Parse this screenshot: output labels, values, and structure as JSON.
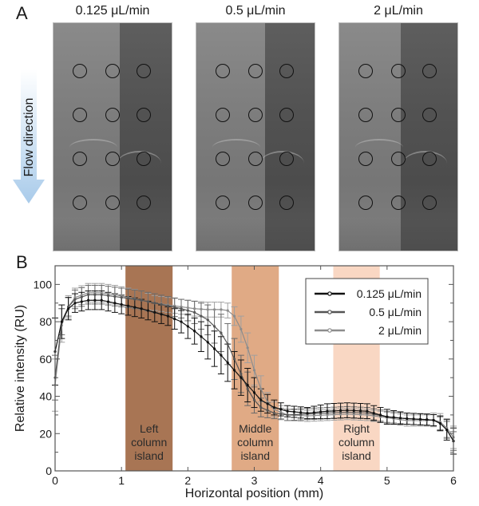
{
  "figure": {
    "panel_a_label": "A",
    "panel_b_label": "B",
    "flow_label": "Flow direction",
    "images": [
      {
        "title": "0.125 μL/min"
      },
      {
        "title": "0.5 μL/min"
      },
      {
        "title": "2 μL/min"
      }
    ],
    "roi_grid": {
      "rows": 4,
      "cols": 3
    }
  },
  "chart_data": {
    "type": "line",
    "title": "",
    "xlabel": "Horizontal position (mm)",
    "ylabel": "Relative intensity (RU)",
    "xlim": [
      0,
      6
    ],
    "ylim": [
      0,
      110
    ],
    "xticks": [
      0,
      1,
      2,
      3,
      4,
      5,
      6
    ],
    "yticks": [
      0,
      20,
      40,
      60,
      80,
      100
    ],
    "grid": false,
    "legend_position": "top-right",
    "error_bars": true,
    "bands": [
      {
        "label": [
          "Left",
          "column",
          "island"
        ],
        "x": [
          1.06,
          1.77
        ],
        "color": "#a87554"
      },
      {
        "label": [
          "Middle",
          "column",
          "island"
        ],
        "x": [
          2.66,
          3.37
        ],
        "color": "#e0aa85"
      },
      {
        "label": [
          "Right",
          "column",
          "island"
        ],
        "x": [
          4.19,
          4.89
        ],
        "color": "#f9d7c3"
      }
    ],
    "series": [
      {
        "name": "0.125 μL/min",
        "color": "#111111",
        "x": [
          0,
          0.1,
          0.2,
          0.3,
          0.5,
          0.7,
          0.9,
          1.1,
          1.3,
          1.5,
          1.7,
          1.9,
          2.1,
          2.3,
          2.5,
          2.7,
          2.9,
          3.0,
          3.1,
          3.3,
          3.5,
          3.8,
          4.1,
          4.4,
          4.7,
          5.0,
          5.3,
          5.6,
          5.75,
          5.85,
          5.95,
          6.0
        ],
        "y": [
          64,
          80,
          87,
          90,
          91.5,
          91.5,
          90,
          88.5,
          87,
          85,
          83,
          80,
          75,
          69,
          62,
          54,
          46,
          42,
          38,
          34,
          32,
          31,
          32,
          32.5,
          32,
          29,
          28,
          27.5,
          27,
          24,
          20,
          16
        ],
        "err": [
          18,
          9,
          6,
          5,
          5,
          5,
          5,
          5,
          5,
          5,
          5,
          6,
          7,
          9,
          10,
          10,
          9,
          8,
          6,
          4,
          3,
          3,
          4,
          4,
          4,
          4,
          3,
          3,
          3,
          5,
          6,
          7
        ]
      },
      {
        "name": "0.5 μL/min",
        "color": "#555555",
        "x": [
          0,
          0.1,
          0.2,
          0.3,
          0.5,
          0.7,
          0.9,
          1.1,
          1.3,
          1.5,
          1.7,
          1.9,
          2.1,
          2.3,
          2.5,
          2.6,
          2.7,
          2.8,
          2.9,
          3.0,
          3.1,
          3.3,
          3.5,
          3.8,
          4.1,
          4.4,
          4.7,
          5.0,
          5.3,
          5.6,
          5.75,
          5.85,
          5.95,
          6.0
        ],
        "y": [
          50,
          80,
          88,
          92,
          94.5,
          94.5,
          93.5,
          92.5,
          91.5,
          90,
          88.5,
          87,
          85,
          81,
          74,
          68,
          60,
          52,
          44,
          38,
          34,
          31,
          30,
          30.5,
          31,
          31.5,
          31,
          29,
          28,
          27.5,
          27,
          24,
          20,
          16
        ],
        "err": [
          12,
          7,
          5,
          5,
          5,
          5,
          5,
          5,
          5,
          5,
          5,
          5,
          6,
          8,
          10,
          11,
          11,
          10,
          9,
          7,
          5,
          3,
          3,
          3,
          3,
          3,
          3,
          3,
          3,
          3,
          3,
          4,
          5,
          5
        ]
      },
      {
        "name": "2 μL/min",
        "color": "#8c8c8c",
        "x": [
          0,
          0.1,
          0.2,
          0.3,
          0.5,
          0.7,
          0.9,
          1.1,
          1.3,
          1.5,
          1.7,
          1.9,
          2.1,
          2.3,
          2.5,
          2.6,
          2.7,
          2.8,
          2.9,
          3.0,
          3.1,
          3.2,
          3.3,
          3.5,
          3.8,
          4.1,
          4.4,
          4.7,
          5.0,
          5.3,
          5.6,
          5.75,
          5.85,
          5.95,
          6.0
        ],
        "y": [
          46,
          78,
          88,
          93,
          95.5,
          95.5,
          94.5,
          93,
          91.5,
          90,
          89,
          88,
          87,
          86.5,
          86.5,
          86,
          83,
          76,
          66,
          54,
          44,
          37,
          33,
          30,
          29.5,
          30,
          30.5,
          30,
          28.5,
          27,
          27,
          27.5,
          25,
          21,
          18
        ],
        "err": [
          14,
          9,
          6,
          5,
          5,
          5,
          5,
          5,
          5,
          4,
          4,
          4,
          4,
          4,
          4,
          4,
          5,
          7,
          8,
          8,
          7,
          5,
          4,
          3,
          3,
          3,
          3,
          3,
          3,
          3,
          3,
          4,
          5,
          5,
          6
        ]
      }
    ]
  }
}
